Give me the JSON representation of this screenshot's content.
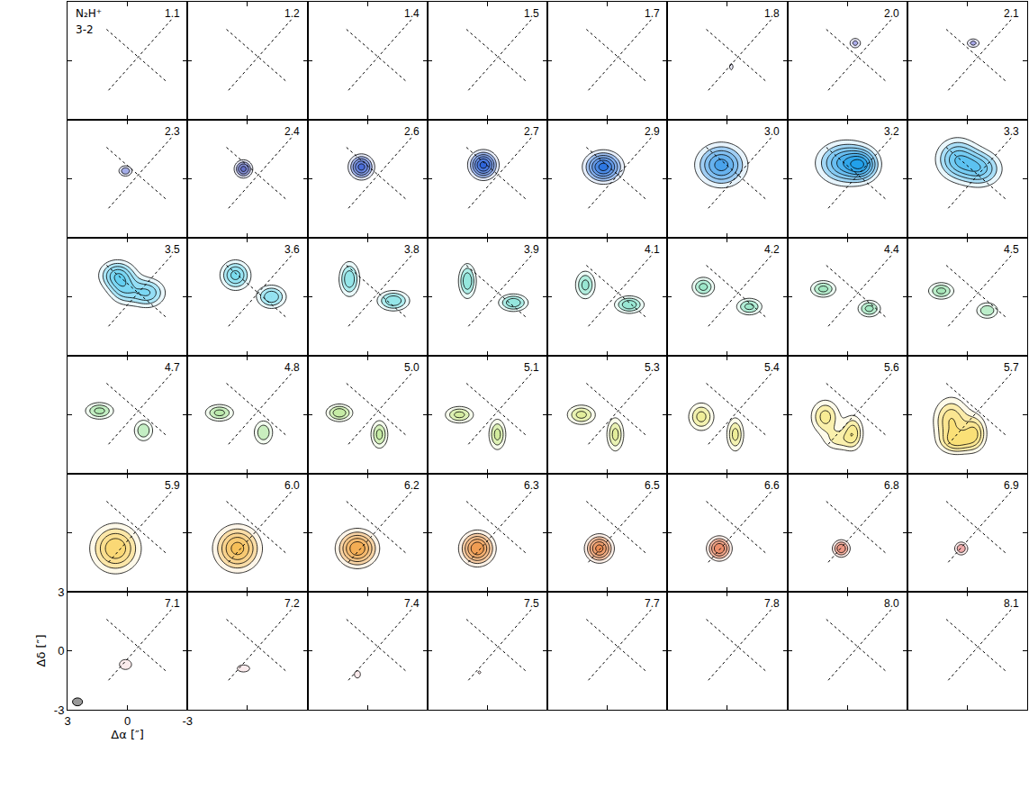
{
  "chart_data": {
    "type": "contour",
    "title": "N₂H⁺",
    "subtitle": "3-2",
    "x_label": "Δα [″]",
    "y_label": "Δδ [″]",
    "xlim": [
      3,
      -3
    ],
    "ylim": [
      -3,
      3
    ],
    "xticks": [
      3,
      0,
      -3
    ],
    "yticks": [
      3,
      0,
      -3
    ],
    "tick_labels": true,
    "contour_start": 3,
    "contour_step": 2,
    "color_max": 16,
    "beam": {
      "x": 2.5,
      "y": -2.6,
      "width": 0.5,
      "height": 0.4,
      "color": "#999999"
    },
    "dotted_lines": [
      [
        0.95,
        -1.5,
        -2.2,
        2.1
      ],
      [
        1.05,
        1.6,
        -2.0,
        -1.1
      ]
    ],
    "panels": [
      {
        "label": "1.1",
        "color": "#4040c8",
        "components": []
      },
      {
        "label": "1.2",
        "color": "#4040c8",
        "components": []
      },
      {
        "label": "1.4",
        "color": "#4040c8",
        "components": []
      },
      {
        "label": "1.5",
        "color": "#4040c8",
        "components": []
      },
      {
        "label": "1.7",
        "color": "#4040c8",
        "components": []
      },
      {
        "label": "1.8",
        "color": "#3d3dcc",
        "components": [
          [
            -0.2,
            -0.3,
            4,
            0.12,
            0.22
          ]
        ]
      },
      {
        "label": "2.0",
        "color": "#3a3ad0",
        "components": [
          [
            -0.4,
            0.9,
            6,
            0.22,
            0.2
          ]
        ]
      },
      {
        "label": "2.1",
        "color": "#3333cc",
        "components": [
          [
            -0.3,
            0.9,
            6,
            0.25,
            0.18
          ]
        ]
      },
      {
        "label": "2.3",
        "color": "#2a3fcc",
        "components": [
          [
            0.1,
            0.4,
            7,
            0.25,
            0.2
          ]
        ]
      },
      {
        "label": "2.4",
        "color": "#1c2fb0",
        "components": [
          [
            0.2,
            0.5,
            10,
            0.3,
            0.3
          ]
        ]
      },
      {
        "label": "2.6",
        "color": "#1f4bd0",
        "components": [
          [
            0.3,
            0.6,
            12,
            0.4,
            0.4
          ]
        ]
      },
      {
        "label": "2.7",
        "color": "#1f5ad8",
        "components": [
          [
            0.2,
            0.7,
            14,
            0.45,
            0.45
          ]
        ]
      },
      {
        "label": "2.9",
        "color": "#1f6ee0",
        "components": [
          [
            0.2,
            0.6,
            14,
            0.6,
            0.5
          ]
        ]
      },
      {
        "label": "3.0",
        "color": "#1f8ee6",
        "components": [
          [
            0.3,
            0.7,
            12,
            0.8,
            0.7
          ]
        ]
      },
      {
        "label": "3.2",
        "color": "#22a0ea",
        "components": [
          [
            0.1,
            0.8,
            12,
            0.9,
            0.7
          ],
          [
            -0.8,
            0.7,
            8,
            0.5,
            0.5
          ]
        ]
      },
      {
        "label": "3.3",
        "color": "#35b4ee",
        "components": [
          [
            0.5,
            1.0,
            10,
            0.7,
            0.7
          ],
          [
            -0.7,
            0.5,
            9,
            0.7,
            0.6
          ]
        ]
      },
      {
        "label": "3.5",
        "color": "#3ec4ee",
        "components": [
          [
            0.5,
            1.1,
            10,
            0.6,
            0.5
          ],
          [
            -1.0,
            0.2,
            9,
            0.6,
            0.5
          ],
          [
            0.2,
            0.3,
            6,
            0.5,
            0.5
          ]
        ]
      },
      {
        "label": "3.6",
        "color": "#3ecbe6",
        "components": [
          [
            0.6,
            1.1,
            10,
            0.5,
            0.5
          ],
          [
            -1.2,
            0.0,
            9,
            0.5,
            0.4
          ]
        ]
      },
      {
        "label": "3.8",
        "color": "#3fd2d6",
        "components": [
          [
            0.9,
            0.9,
            9,
            0.35,
            0.6
          ],
          [
            -1.3,
            -0.2,
            9,
            0.55,
            0.35
          ]
        ]
      },
      {
        "label": "3.9",
        "color": "#40d4c4",
        "components": [
          [
            1.0,
            0.8,
            9,
            0.3,
            0.6
          ],
          [
            -1.3,
            -0.3,
            9,
            0.5,
            0.3
          ]
        ]
      },
      {
        "label": "4.1",
        "color": "#45d4b0",
        "components": [
          [
            1.1,
            0.6,
            8,
            0.35,
            0.5
          ],
          [
            -1.1,
            -0.4,
            9,
            0.5,
            0.3
          ]
        ]
      },
      {
        "label": "4.2",
        "color": "#4cd49e",
        "components": [
          [
            1.2,
            0.5,
            8,
            0.4,
            0.35
          ],
          [
            -1.1,
            -0.5,
            8,
            0.45,
            0.3
          ]
        ]
      },
      {
        "label": "4.4",
        "color": "#55d48e",
        "components": [
          [
            1.2,
            0.4,
            8,
            0.45,
            0.3
          ],
          [
            -1.1,
            -0.6,
            8,
            0.4,
            0.3
          ]
        ]
      },
      {
        "label": "4.5",
        "color": "#60d480",
        "components": [
          [
            1.3,
            0.3,
            8,
            0.45,
            0.3
          ],
          [
            -1.0,
            -0.7,
            7,
            0.4,
            0.3
          ]
        ]
      },
      {
        "label": "4.7",
        "color": "#72d672",
        "components": [
          [
            1.4,
            0.2,
            8,
            0.5,
            0.3
          ],
          [
            -0.8,
            -0.8,
            7,
            0.35,
            0.4
          ]
        ]
      },
      {
        "label": "4.8",
        "color": "#82d868",
        "components": [
          [
            1.4,
            0.1,
            8,
            0.5,
            0.3
          ],
          [
            -0.8,
            -0.9,
            7,
            0.35,
            0.45
          ]
        ]
      },
      {
        "label": "5.0",
        "color": "#98dc5c",
        "components": [
          [
            1.4,
            0.1,
            9,
            0.45,
            0.3
          ],
          [
            -0.6,
            -1.0,
            8,
            0.3,
            0.5
          ]
        ]
      },
      {
        "label": "5.1",
        "color": "#b0de50",
        "components": [
          [
            1.4,
            0.0,
            8,
            0.5,
            0.3
          ],
          [
            -0.5,
            -1.0,
            8,
            0.3,
            0.55
          ]
        ]
      },
      {
        "label": "5.3",
        "color": "#cce04a",
        "components": [
          [
            1.3,
            0.0,
            8,
            0.5,
            0.35
          ],
          [
            -0.4,
            -1.0,
            8,
            0.3,
            0.6
          ]
        ]
      },
      {
        "label": "5.4",
        "color": "#e2e044",
        "components": [
          [
            1.3,
            -0.1,
            8,
            0.45,
            0.5
          ],
          [
            -0.4,
            -1.0,
            8,
            0.3,
            0.6
          ]
        ]
      },
      {
        "label": "5.6",
        "color": "#f4dc3e",
        "components": [
          [
            1.1,
            -0.1,
            8,
            0.5,
            0.6
          ],
          [
            -0.3,
            -0.9,
            8,
            0.35,
            0.6
          ],
          [
            0.5,
            -1.3,
            5,
            0.5,
            0.4
          ]
        ]
      },
      {
        "label": "5.7",
        "color": "#f8d238",
        "components": [
          [
            0.8,
            -0.3,
            9,
            0.6,
            0.8
          ],
          [
            -0.4,
            -0.9,
            8,
            0.4,
            0.6
          ],
          [
            0.5,
            -1.4,
            7,
            0.6,
            0.4
          ]
        ]
      },
      {
        "label": "5.9",
        "color": "#f8c634",
        "components": [
          [
            0.6,
            -0.8,
            11,
            0.8,
            0.8
          ]
        ]
      },
      {
        "label": "6.0",
        "color": "#f4b030",
        "components": [
          [
            0.5,
            -0.8,
            12,
            0.75,
            0.75
          ]
        ]
      },
      {
        "label": "6.2",
        "color": "#f09a2c",
        "components": [
          [
            0.5,
            -0.8,
            13,
            0.65,
            0.6
          ]
        ]
      },
      {
        "label": "6.3",
        "color": "#ec862a",
        "components": [
          [
            0.5,
            -0.8,
            13,
            0.55,
            0.55
          ]
        ]
      },
      {
        "label": "6.5",
        "color": "#e87028",
        "components": [
          [
            0.4,
            -0.8,
            12,
            0.45,
            0.45
          ]
        ]
      },
      {
        "label": "6.6",
        "color": "#e45a26",
        "components": [
          [
            0.4,
            -0.8,
            11,
            0.4,
            0.4
          ]
        ]
      },
      {
        "label": "6.8",
        "color": "#e04424",
        "components": [
          [
            0.3,
            -0.8,
            9,
            0.3,
            0.3
          ]
        ]
      },
      {
        "label": "6.9",
        "color": "#dc3a3a",
        "components": [
          [
            0.3,
            -0.8,
            7,
            0.25,
            0.25
          ]
        ]
      },
      {
        "label": "7.1",
        "color": "#d8404a",
        "components": [
          [
            0.1,
            -0.7,
            5,
            0.3,
            0.25
          ]
        ]
      },
      {
        "label": "7.2",
        "color": "#d44a5a",
        "components": [
          [
            0.2,
            -0.9,
            4.5,
            0.35,
            0.2
          ]
        ]
      },
      {
        "label": "7.4",
        "color": "#d44a5a",
        "components": [
          [
            0.5,
            -1.2,
            4,
            0.2,
            0.25
          ]
        ]
      },
      {
        "label": "7.5",
        "color": "#d44a5a",
        "components": [
          [
            0.4,
            -1.1,
            3.5,
            0.15,
            0.15
          ]
        ]
      },
      {
        "label": "7.7",
        "color": "#d44a5a",
        "components": []
      },
      {
        "label": "7.8",
        "color": "#d44a5a",
        "components": []
      },
      {
        "label": "8.0",
        "color": "#d44a5a",
        "components": []
      },
      {
        "label": "8.1",
        "color": "#d44a5a",
        "components": []
      }
    ]
  }
}
